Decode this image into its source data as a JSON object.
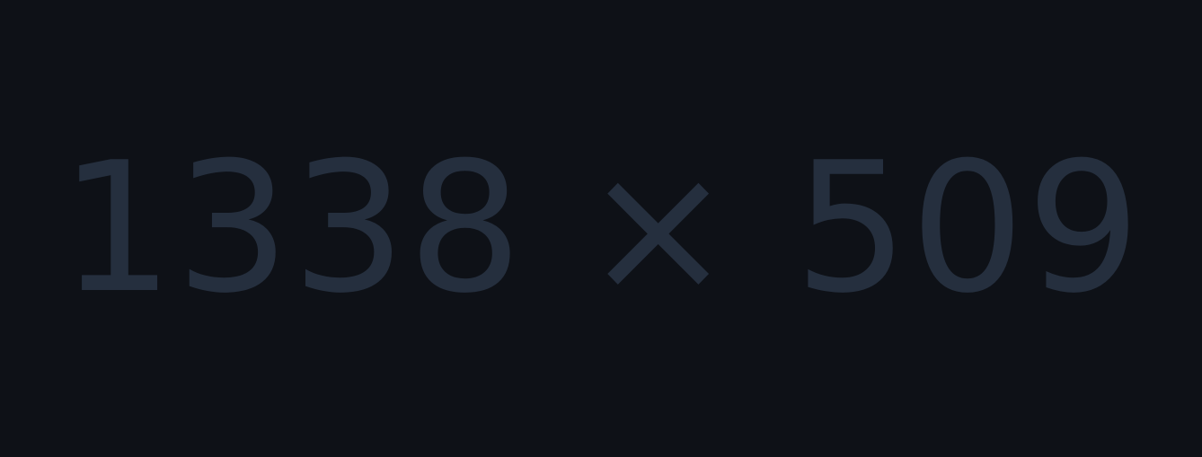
{
  "placeholder": {
    "text": "1338 × 509",
    "background_color": "#0e1117",
    "text_color": "#252f3e"
  }
}
